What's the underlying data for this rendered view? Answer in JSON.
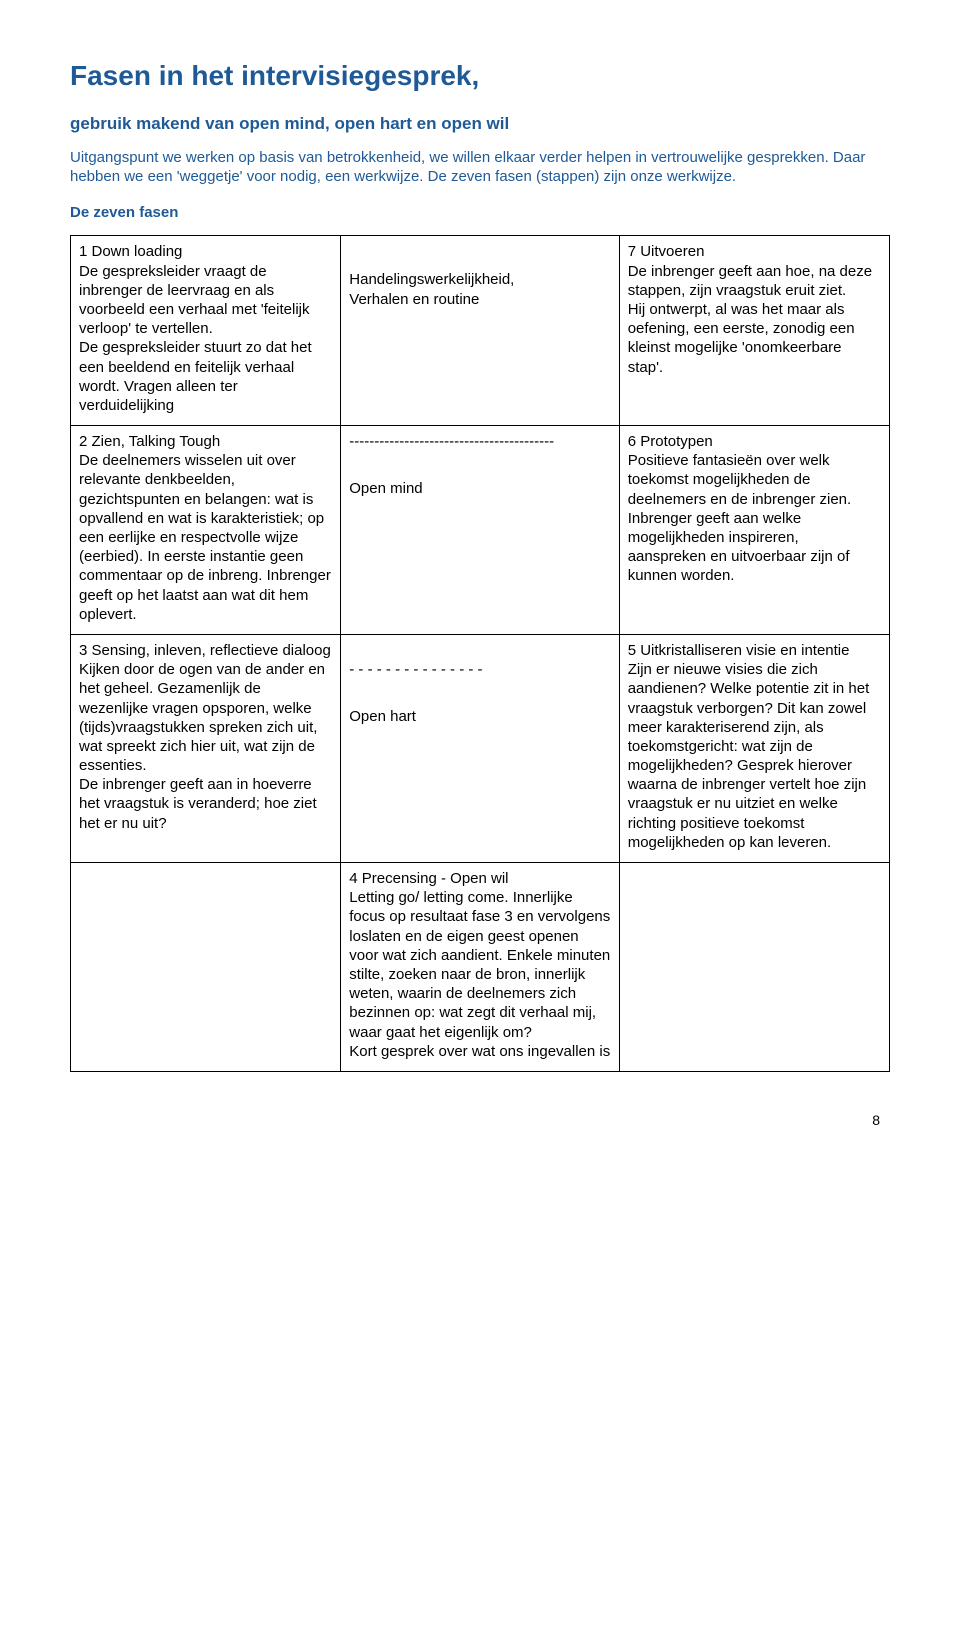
{
  "title": "Fasen in het intervisiegesprek,",
  "subtitle": "gebruik makend van open mind, open hart en open wil",
  "intro": "Uitgangspunt we werken op basis van betrokkenheid, we willen elkaar verder helpen in vertrouwelijke gesprekken. Daar hebben we een 'weggetje' voor nodig, een werkwijze. De zeven fasen (stappen) zijn onze werkwijze.",
  "section_label": "De zeven fasen",
  "rows": {
    "r1": {
      "left": "1 Down loading\nDe gespreksleider vraagt de inbrenger de leervraag en als voorbeeld een verhaal met 'feitelijk verloop' te vertellen.\nDe gespreksleider stuurt zo dat het een beeldend en feitelijk verhaal wordt. Vragen alleen ter verduidelijking",
      "mid_line1": "Handelingswerkelijkheid,",
      "mid_line2": "Verhalen en routine",
      "right": "7 Uitvoeren\nDe inbrenger geeft aan hoe, na deze stappen, zijn vraagstuk eruit ziet.\nHij ontwerpt, al was het maar als oefening, een eerste, zonodig een kleinst mogelijke 'onomkeerbare stap'."
    },
    "r2": {
      "left": "2 Zien, Talking Tough\nDe deelnemers wisselen uit over relevante denkbeelden, gezichtspunten en belangen: wat is opvallend en wat is karakteristiek; op een eerlijke en respectvolle wijze (eerbied). In eerste instantie geen commentaar op de inbreng. Inbrenger geeft op het laatst aan wat dit hem oplevert.",
      "mid_dashes": "-----------------------------------------",
      "mid_label": "Open mind",
      "right": "6 Prototypen\nPositieve fantasieën over welk toekomst mogelijkheden de deelnemers en de inbrenger zien. Inbrenger geeft aan welke mogelijkheden inspireren, aanspreken en uitvoerbaar zijn of kunnen worden."
    },
    "r3": {
      "left": "3 Sensing, inleven, reflectieve dialoog\nKijken door de ogen van de ander en het geheel. Gezamenlijk de wezenlijke vragen opsporen, welke (tijds)vraagstukken spreken zich uit, wat spreekt zich hier uit, wat zijn de essenties.\nDe inbrenger geeft aan in hoeverre het vraagstuk is veranderd; hoe ziet het er nu uit?",
      "mid_dashes": "- - - - - - - - - - - - - - -",
      "mid_label": "Open hart",
      "right": "5 Uitkristalliseren visie en intentie\nZijn er nieuwe visies die zich aandienen? Welke potentie zit in het vraagstuk verborgen? Dit kan zowel meer karakteriserend zijn, als toekomstgericht: wat zijn de mogelijkheden? Gesprek hierover waarna de inbrenger vertelt hoe zijn vraagstuk er nu uitziet en welke richting positieve toekomst mogelijkheden op kan leveren."
    },
    "r4": {
      "mid": "4 Precensing - Open wil\nLetting go/ letting come. Innerlijke focus op resultaat fase 3 en vervolgens loslaten en de eigen geest openen voor wat zich aandient. Enkele minuten stilte, zoeken naar de bron, innerlijk weten, waarin de deelnemers zich bezinnen op: wat zegt dit verhaal mij, waar gaat het eigenlijk om?\nKort gesprek over wat ons ingevallen is"
    }
  },
  "colors": {
    "heading": "#1f5a96",
    "body": "#000000",
    "border": "#000000",
    "background": "#ffffff"
  },
  "page_number": "8"
}
